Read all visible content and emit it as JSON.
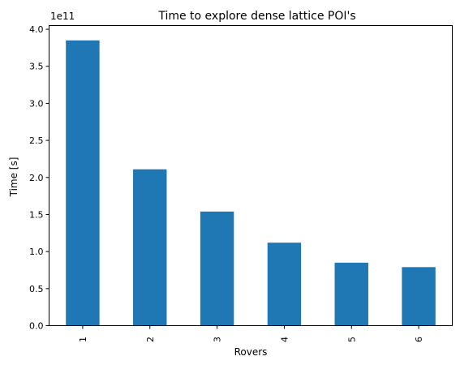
{
  "chart_data": {
    "type": "bar",
    "title": "Time to explore dense lattice POI's",
    "xlabel": "Rovers",
    "ylabel": "Time [s]",
    "offset_label": "1e11",
    "categories": [
      "1",
      "2",
      "3",
      "4",
      "5",
      "6"
    ],
    "values": [
      385000000000.0,
      211000000000.0,
      154000000000.0,
      112000000000.0,
      85000000000.0,
      79000000000.0
    ],
    "ylim": [
      0,
      405000000000.0
    ],
    "yticks": [
      0,
      50000000000.0,
      100000000000.0,
      150000000000.0,
      200000000000.0,
      250000000000.0,
      300000000000.0,
      350000000000.0,
      400000000000.0
    ],
    "ytick_labels": [
      "0.0",
      "0.5",
      "1.0",
      "1.5",
      "2.0",
      "2.5",
      "3.0",
      "3.5",
      "4.0"
    ],
    "grid": false,
    "bar_color": "#1f77b4"
  }
}
